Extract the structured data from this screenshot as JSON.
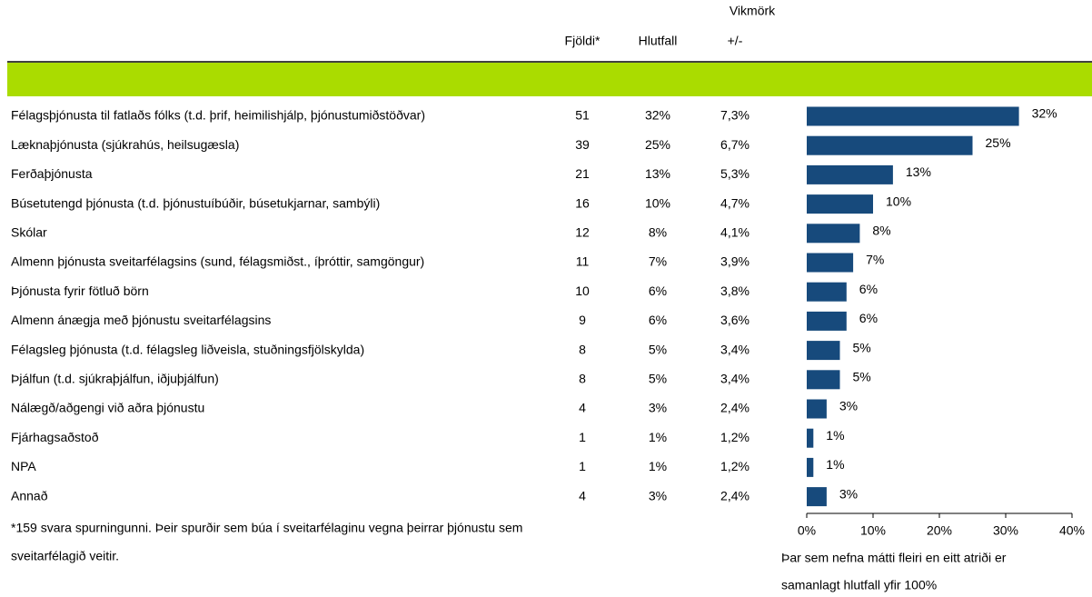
{
  "table": {
    "headers": {
      "count": "Fjöldi*",
      "share": "Hlutfall",
      "margin_top": "Vikmörk",
      "margin_bottom": "+/-"
    },
    "counts": [
      51,
      39,
      21,
      16,
      12,
      11,
      10,
      9,
      8,
      8,
      4,
      1,
      1,
      4
    ],
    "margins": [
      "7,3%",
      "6,7%",
      "5,3%",
      "4,7%",
      "4,1%",
      "3,9%",
      "3,8%",
      "3,6%",
      "3,4%",
      "3,4%",
      "2,4%",
      "1,2%",
      "1,2%",
      "2,4%"
    ],
    "footnote": [
      "*159 svara spurningunni. Þeir spurðir sem búa í sveitarfélaginu vegna þeirrar þjónustu sem",
      "sveitarfélagið veitir."
    ]
  },
  "chart_data": {
    "type": "hbar",
    "categories": [
      "Félagsþjónusta til fatlaðs fólks (t.d. þrif, heimilishjálp, þjónustumiðstöðvar)",
      "Læknaþjónusta (sjúkrahús, heilsugæsla)",
      "Ferðaþjónusta",
      "Búsetutengd þjónusta (t.d. þjónustuíbúðir, búsetukjarnar, sambýli)",
      "Skólar",
      "Almenn þjónusta sveitarfélagsins (sund, félagsmiðst., íþróttir, samgöngur)",
      "Þjónusta fyrir fötluð börn",
      "Almenn ánægja með þjónustu sveitarfélagsins",
      "Félagsleg þjónusta (t.d. félagsleg liðveisla, stuðningsfjölskylda)",
      "Þjálfun (t.d. sjúkraþjálfun, iðjuþjálfun)",
      "Nálægð/aðgengi við aðra þjónustu",
      "Fjárhagsaðstoð",
      "NPA",
      "Annað"
    ],
    "values": [
      32,
      25,
      13,
      10,
      8,
      7,
      6,
      6,
      5,
      5,
      3,
      1,
      1,
      3
    ],
    "value_labels": [
      "32%",
      "25%",
      "13%",
      "10%",
      "8%",
      "7%",
      "6%",
      "6%",
      "5%",
      "5%",
      "3%",
      "1%",
      "1%",
      "3%"
    ],
    "color": "#174a7c",
    "xlim": [
      0,
      40
    ],
    "xticks": [
      {
        "value": 0,
        "label": "0%"
      },
      {
        "value": 10,
        "label": "10%"
      },
      {
        "value": 20,
        "label": "20%"
      },
      {
        "value": 30,
        "label": "30%"
      },
      {
        "value": 40,
        "label": "40%"
      }
    ],
    "note": [
      "Þar sem nefna mátti fleiri en eitt atriði er",
      "samanlagt hlutfall yfir 100%"
    ]
  }
}
